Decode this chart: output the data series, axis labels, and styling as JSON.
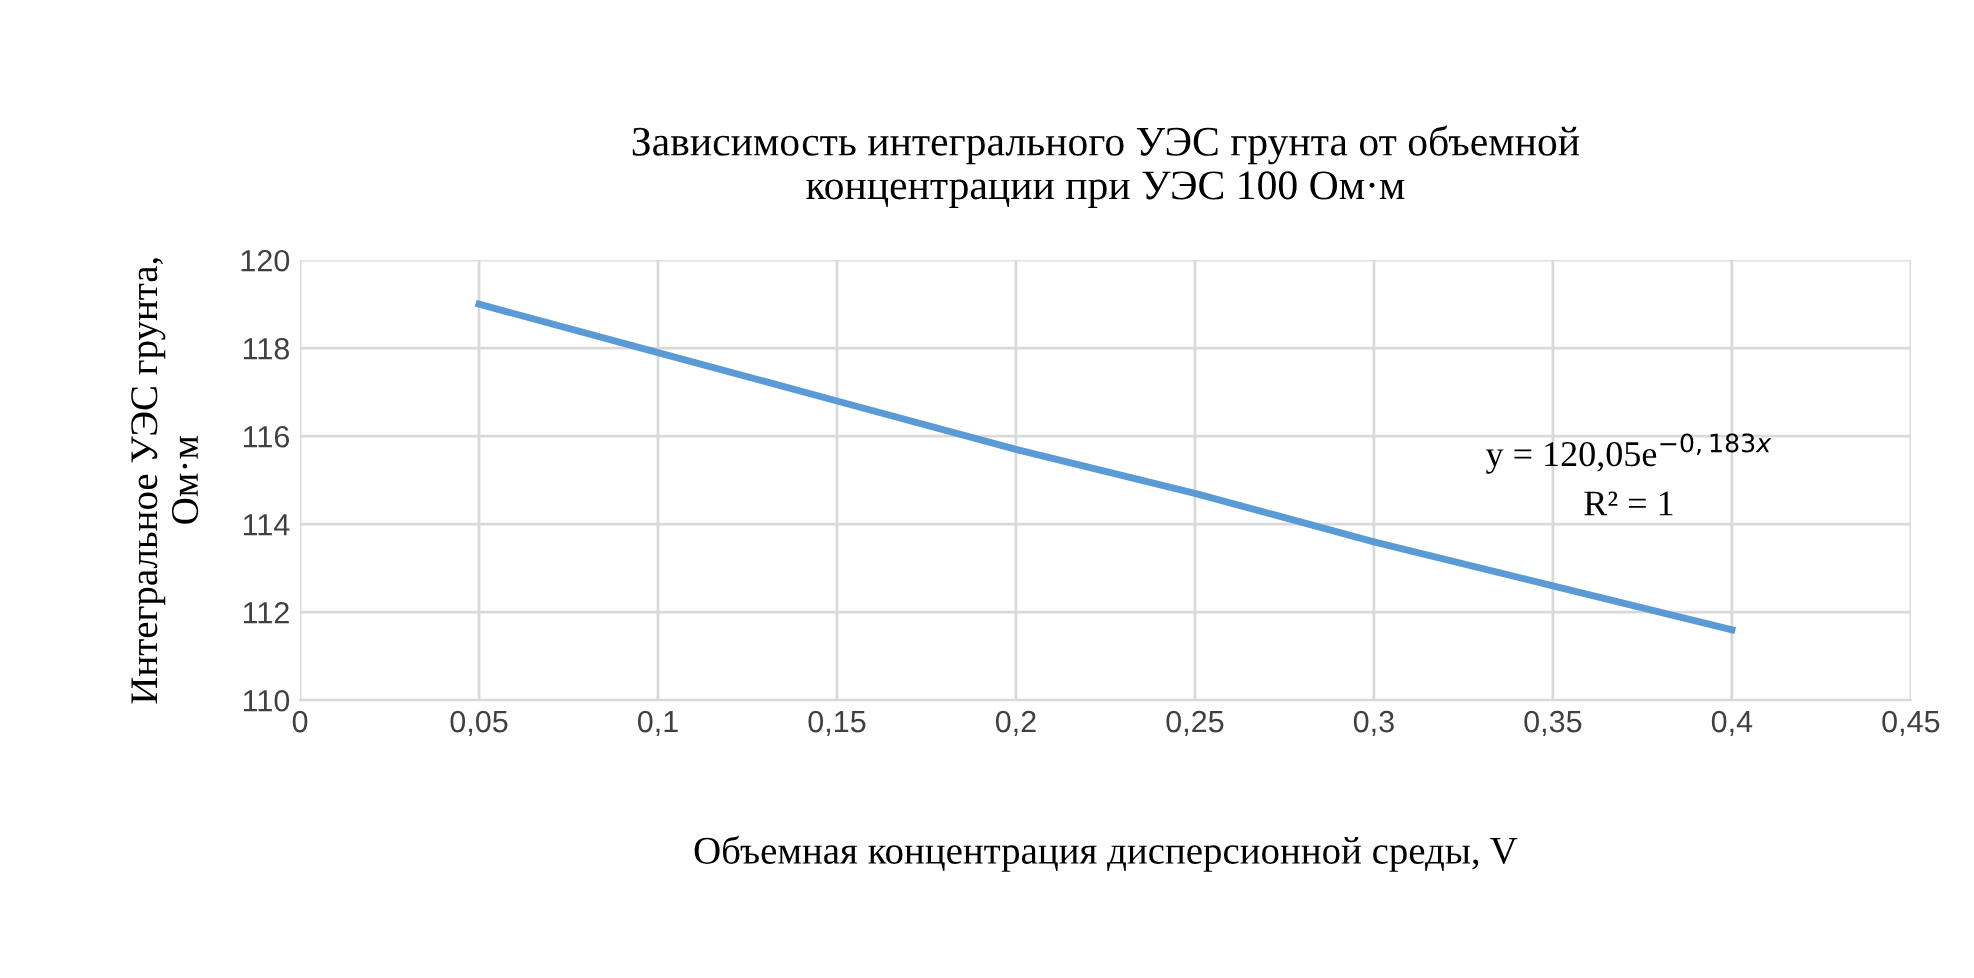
{
  "chart_data": {
    "type": "line",
    "title": "Зависимость интегрального УЭС грунта от объемной\nконцентрации при УЭС 100 Ом·м",
    "xlabel": "Объемная концентрация дисперсионной среды, V",
    "ylabel": "Интегральное УЭС грунта,\nОм·м",
    "x": [
      0.05,
      0.1,
      0.15,
      0.2,
      0.25,
      0.3,
      0.35,
      0.4
    ],
    "series": [
      {
        "color": "#5b9bd5",
        "values": [
          119.0,
          117.9,
          116.8,
          115.7,
          114.7,
          113.6,
          112.6,
          111.6
        ]
      }
    ],
    "xlim": [
      0,
      0.45
    ],
    "ylim": [
      110,
      120
    ],
    "xticks": [
      0,
      {
        "value": 0.05,
        "label": "0,05"
      },
      {
        "value": 0.1,
        "label": "0,1"
      },
      {
        "value": 0.15,
        "label": "0,15"
      },
      {
        "value": 0.2,
        "label": "0,2"
      },
      {
        "value": 0.25,
        "label": "0,25"
      },
      {
        "value": 0.3,
        "label": "0,3"
      },
      {
        "value": 0.35,
        "label": "0,35"
      },
      {
        "value": 0.4,
        "label": "0,4"
      },
      {
        "value": 0.45,
        "label": "0,45"
      }
    ],
    "yticks": [
      110,
      112,
      114,
      116,
      118,
      120
    ],
    "grid": true,
    "marker": "none",
    "line_style": "solid",
    "legend": false,
    "annotations": [
      "y = 120,05e$^{−0,183x}$",
      "R² = 1"
    ]
  }
}
